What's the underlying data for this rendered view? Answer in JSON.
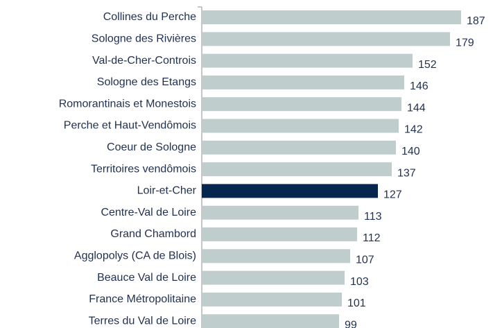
{
  "chart_data": {
    "type": "bar",
    "orientation": "horizontal",
    "categories": [
      "Collines du Perche",
      "Sologne des Rivières",
      "Val-de-Cher-Controis",
      "Sologne des Etangs",
      "Romorantinais et Monestois",
      "Perche et Haut-Vendômois",
      "Coeur de Sologne",
      "Territoires vendômois",
      "Loir-et-Cher",
      "Centre-Val de Loire",
      "Grand Chambord",
      "Agglopolys (CA de Blois)",
      "Beauce Val de Loire",
      "France Métropolitaine",
      "Terres du Val de Loire"
    ],
    "values": [
      187,
      179,
      152,
      146,
      144,
      142,
      140,
      137,
      127,
      113,
      112,
      107,
      103,
      101,
      99
    ],
    "colors": [
      "#bfcdcc",
      "#bfcdcc",
      "#bfcdcc",
      "#bfcdcc",
      "#bfcdcc",
      "#bfcdcc",
      "#bfcdcc",
      "#bfcdcc",
      "#04264f",
      "#bfcdcc",
      "#bfcdcc",
      "#bfcdcc",
      "#bfcdcc",
      "#bfcdcc",
      "#bfcdcc"
    ],
    "xlim": [
      0,
      210
    ]
  }
}
